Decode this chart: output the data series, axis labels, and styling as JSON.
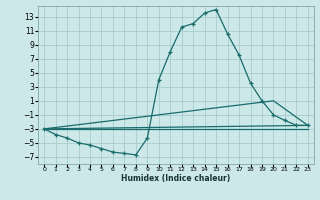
{
  "xlabel": "Humidex (Indice chaleur)",
  "bg_color": "#cce8e8",
  "line_color": "#1a6b6b",
  "grid_color": "#b8d8d8",
  "xlim": [
    -0.5,
    23.5
  ],
  "ylim": [
    -8,
    14.5
  ],
  "xticks": [
    0,
    1,
    2,
    3,
    4,
    5,
    6,
    7,
    8,
    9,
    10,
    11,
    12,
    13,
    14,
    15,
    16,
    17,
    18,
    19,
    20,
    21,
    22,
    23
  ],
  "yticks": [
    -7,
    -5,
    -3,
    -1,
    1,
    3,
    5,
    7,
    9,
    11,
    13
  ],
  "main_x": [
    0,
    1,
    2,
    3,
    4,
    5,
    6,
    7,
    8,
    9,
    10,
    11,
    12,
    13,
    14,
    15,
    16,
    17,
    18,
    19,
    20,
    21,
    22,
    23
  ],
  "main_y": [
    -3.0,
    -3.8,
    -4.3,
    -5.0,
    -5.3,
    -5.8,
    -6.3,
    -6.5,
    -6.7,
    -4.3,
    4.0,
    8.0,
    11.5,
    12.0,
    13.5,
    14.0,
    10.5,
    7.5,
    3.5,
    1.0,
    -1.0,
    -1.8,
    -2.5,
    -2.5
  ],
  "trend1_x": [
    0,
    23
  ],
  "trend1_y": [
    -3.0,
    -2.5
  ],
  "trend2_x": [
    0,
    20,
    23
  ],
  "trend2_y": [
    -3.0,
    1.0,
    -2.5
  ],
  "trend3_x": [
    0,
    23
  ],
  "trend3_y": [
    -3.0,
    -3.0
  ]
}
